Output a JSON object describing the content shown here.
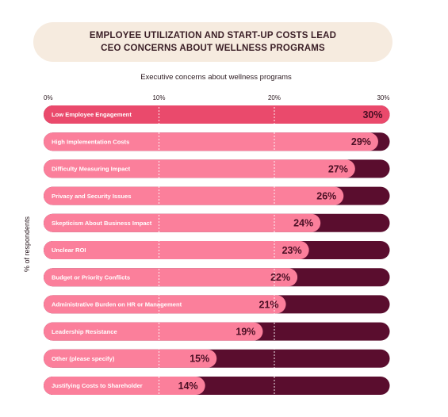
{
  "colors": {
    "track": "#5a0d2e",
    "bar_top": "#ea4a6c",
    "bar": "#fb7f9b",
    "title_bg": "#f6ebdf"
  },
  "chart_data": {
    "type": "bar",
    "orientation": "horizontal",
    "title_lines": [
      "EMPLOYEE UTILIZATION AND START-UP COSTS LEAD",
      "CEO CONCERNS ABOUT WELLNESS PROGRAMS"
    ],
    "subtitle": "Executive concerns about wellness programs",
    "ylabel": "% of respondents",
    "xlim": [
      0,
      30
    ],
    "xticks": [
      0,
      10,
      20,
      30
    ],
    "xtick_labels": [
      "0%",
      "10%",
      "20%",
      "30%"
    ],
    "grid": "vertical dashed",
    "categories": [
      "Low Employee Engagement",
      "High Implementation Costs",
      "Difficulty Measuring Impact",
      "Privacy and Security Issues",
      "Skepticism About Business Impact",
      "Unclear ROI",
      "Budget or Priority Conflicts",
      "Administrative Burden on HR or Management",
      "Leadership Resistance",
      "Other (please specify)",
      "Justifying Costs to Shareholder"
    ],
    "values": [
      30,
      29,
      27,
      26,
      24,
      23,
      22,
      21,
      19,
      15,
      14
    ],
    "value_labels": [
      "30%",
      "29%",
      "27%",
      "26%",
      "24%",
      "23%",
      "22%",
      "21%",
      "19%",
      "15%",
      "14%"
    ]
  }
}
